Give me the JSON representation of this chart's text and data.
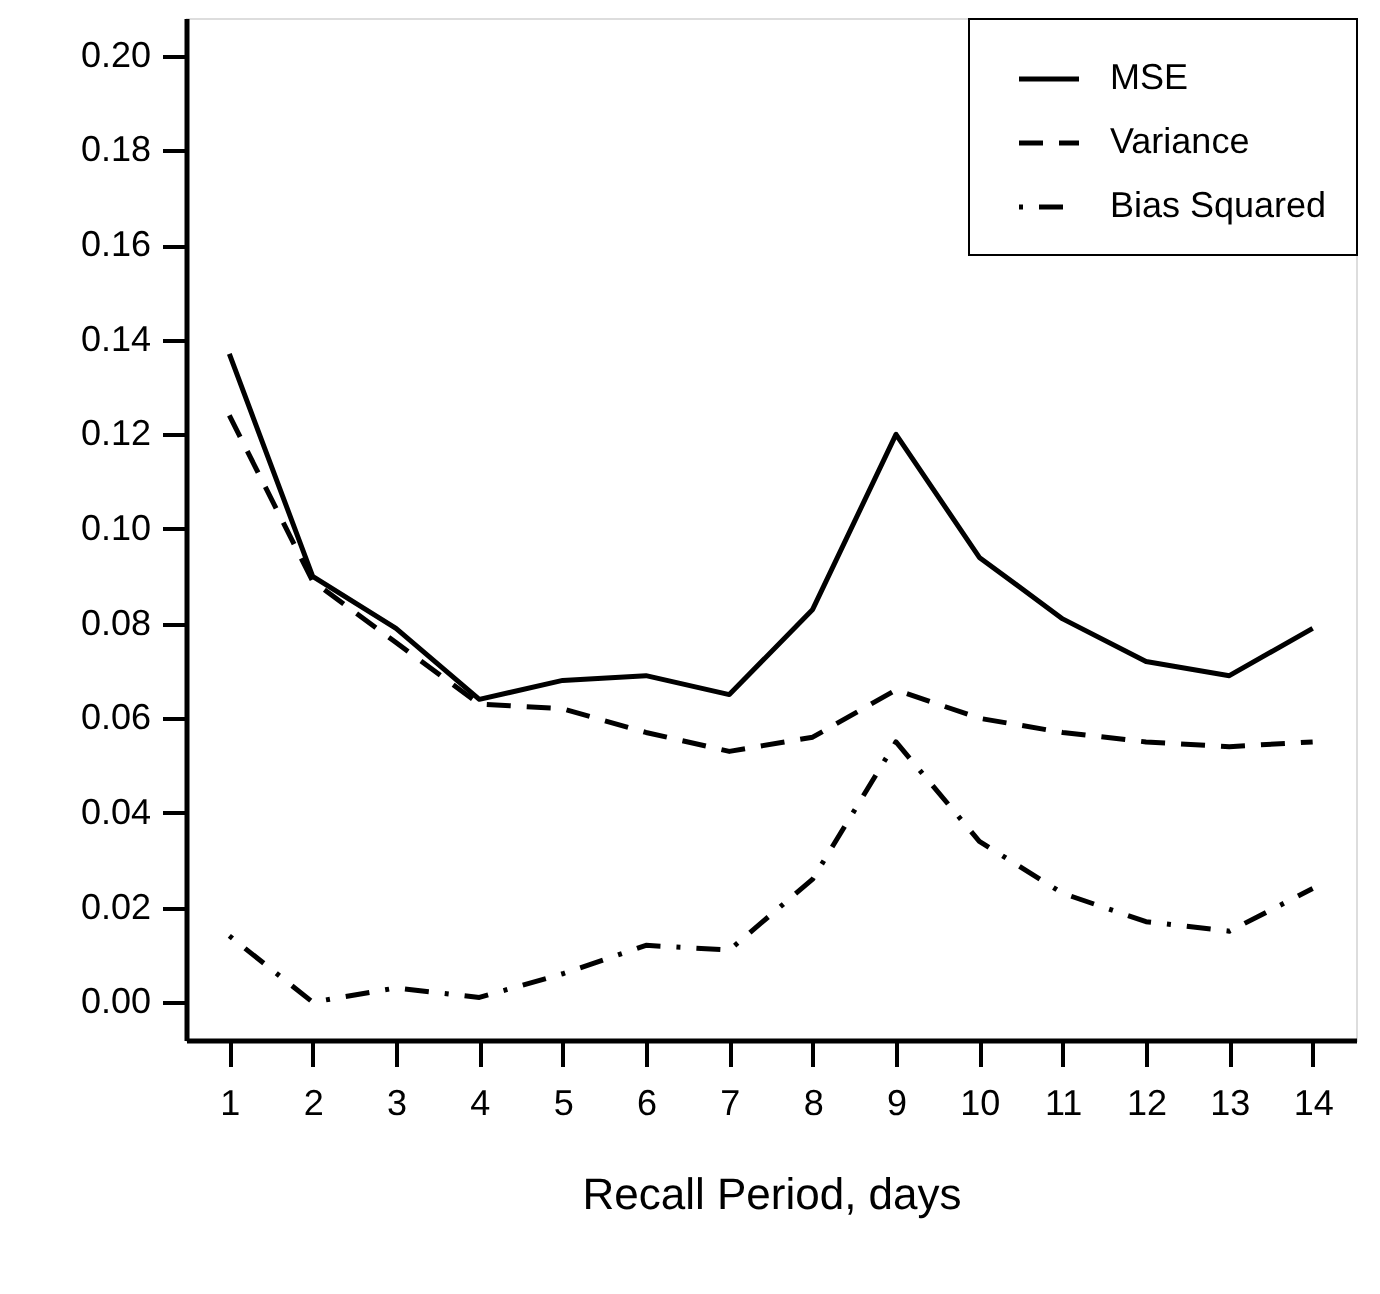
{
  "chart_data": {
    "type": "line",
    "xlabel": "Recall Period, days",
    "x": [
      1,
      2,
      3,
      4,
      5,
      6,
      7,
      8,
      9,
      10,
      11,
      12,
      13,
      14
    ],
    "series": [
      {
        "name": "MSE",
        "color": "#000000",
        "line_style": "solid",
        "values": [
          0.137,
          0.09,
          0.079,
          0.064,
          0.068,
          0.069,
          0.065,
          0.083,
          0.12,
          0.094,
          0.081,
          0.072,
          0.069,
          0.079
        ]
      },
      {
        "name": "Variance",
        "color": "#000000",
        "line_style": "dashed",
        "values": [
          0.124,
          0.089,
          0.076,
          0.063,
          0.062,
          0.057,
          0.053,
          0.056,
          0.066,
          0.06,
          0.057,
          0.055,
          0.054,
          0.055
        ]
      },
      {
        "name": "Bias Squared",
        "color": "#000000",
        "line_style": "dashdot",
        "values": [
          0.014,
          0.0,
          0.003,
          0.001,
          0.006,
          0.012,
          0.011,
          0.026,
          0.055,
          0.034,
          0.023,
          0.017,
          0.015,
          0.024
        ]
      }
    ],
    "xlim": [
      0.48,
      14.52
    ],
    "xticks": [
      1,
      2,
      3,
      4,
      5,
      6,
      7,
      8,
      9,
      10,
      11,
      12,
      13,
      14
    ],
    "ylim": [
      -0.008,
      0.208
    ],
    "yticks": [
      {
        "value": 0,
        "label": "0.00"
      },
      {
        "value": 0.02,
        "label": "0.02"
      },
      {
        "value": 0.04,
        "label": "0.04"
      },
      {
        "value": 0.06,
        "label": "0.06"
      },
      {
        "value": 0.08,
        "label": "0.08"
      },
      {
        "value": 0.1,
        "label": "0.10"
      },
      {
        "value": 0.12,
        "label": "0.12"
      },
      {
        "value": 0.14,
        "label": "0.14"
      },
      {
        "value": 0.16,
        "label": "0.16"
      },
      {
        "value": 0.18,
        "label": "0.18"
      },
      {
        "value": 0.2,
        "label": "0.20"
      }
    ],
    "grid": false,
    "legend": "top right"
  }
}
